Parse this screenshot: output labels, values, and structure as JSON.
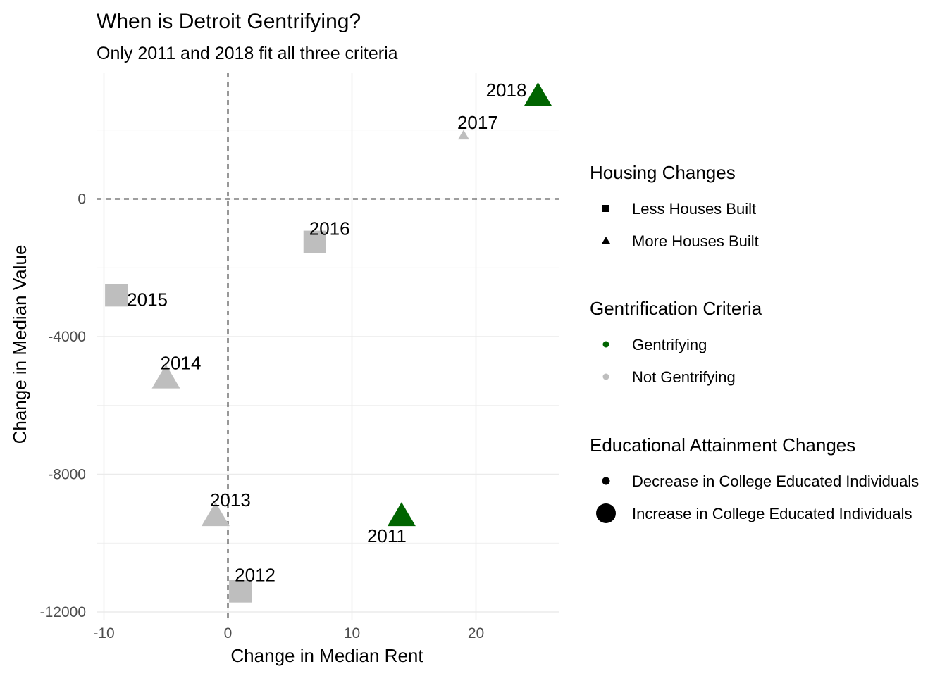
{
  "chart_data": {
    "type": "scatter",
    "title": "When is Detroit Gentrifying?",
    "subtitle": "Only 2011 and 2018 fit all three criteria",
    "xlabel": "Change in Median Rent",
    "ylabel": "Change in Median Value",
    "xlim": [
      -10,
      27
    ],
    "ylim": [
      -12000,
      3500
    ],
    "x_ticks": [
      -10,
      0,
      10,
      20
    ],
    "x_tick_labels": [
      "-10",
      "0",
      "10",
      "20"
    ],
    "y_ticks": [
      -12000,
      -8000,
      -4000,
      0
    ],
    "y_tick_labels": [
      "-12000",
      "-8000",
      "-4000",
      "0"
    ],
    "grid": true,
    "reference_lines": [
      {
        "axis": "x",
        "value": 0,
        "style": "dashed"
      },
      {
        "axis": "y",
        "value": 0,
        "style": "dashed"
      }
    ],
    "points": [
      {
        "label": "2011",
        "x": 14,
        "y": -9200,
        "housing": "More Houses Built",
        "gentrification": "Gentrifying",
        "education": "Increase in College Educated Individuals"
      },
      {
        "label": "2012",
        "x": 1,
        "y": -11400,
        "housing": "Less Houses Built",
        "gentrification": "Not Gentrifying",
        "education": "Increase in College Educated Individuals"
      },
      {
        "label": "2013",
        "x": -1,
        "y": -9200,
        "housing": "More Houses Built",
        "gentrification": "Not Gentrifying",
        "education": "Increase in College Educated Individuals"
      },
      {
        "label": "2014",
        "x": -5,
        "y": -5200,
        "housing": "More Houses Built",
        "gentrification": "Not Gentrifying",
        "education": "Increase in College Educated Individuals"
      },
      {
        "label": "2015",
        "x": -9,
        "y": -2800,
        "housing": "Less Houses Built",
        "gentrification": "Not Gentrifying",
        "education": "Increase in College Educated Individuals"
      },
      {
        "label": "2016",
        "x": 7,
        "y": -1250,
        "housing": "Less Houses Built",
        "gentrification": "Not Gentrifying",
        "education": "Increase in College Educated Individuals"
      },
      {
        "label": "2017",
        "x": 19,
        "y": 1850,
        "housing": "More Houses Built",
        "gentrification": "Not Gentrifying",
        "education": "Decrease in College Educated Individuals"
      },
      {
        "label": "2018",
        "x": 25,
        "y": 3000,
        "housing": "More Houses Built",
        "gentrification": "Gentrifying",
        "education": "Increase in College Educated Individuals"
      }
    ],
    "legends": [
      {
        "title": "Housing Changes",
        "items": [
          {
            "label": "Less Houses Built",
            "shape": "square"
          },
          {
            "label": "More Houses Built",
            "shape": "triangle"
          }
        ]
      },
      {
        "title": "Gentrification Criteria",
        "items": [
          {
            "label": "Gentrifying",
            "color": "#006400"
          },
          {
            "label": "Not Gentrifying",
            "color": "#bebebe"
          }
        ]
      },
      {
        "title": "Educational Attainment Changes",
        "items": [
          {
            "label": "Decrease in College Educated Individuals",
            "size": "small"
          },
          {
            "label": "Increase in College Educated Individuals",
            "size": "large"
          }
        ]
      }
    ],
    "legend_position": "right",
    "colors": {
      "gentrifying": "#006400",
      "not_gentrifying": "#bebebe",
      "grid": "#ebebeb",
      "text": "#000000",
      "tick_text": "#4d4d4d"
    }
  }
}
